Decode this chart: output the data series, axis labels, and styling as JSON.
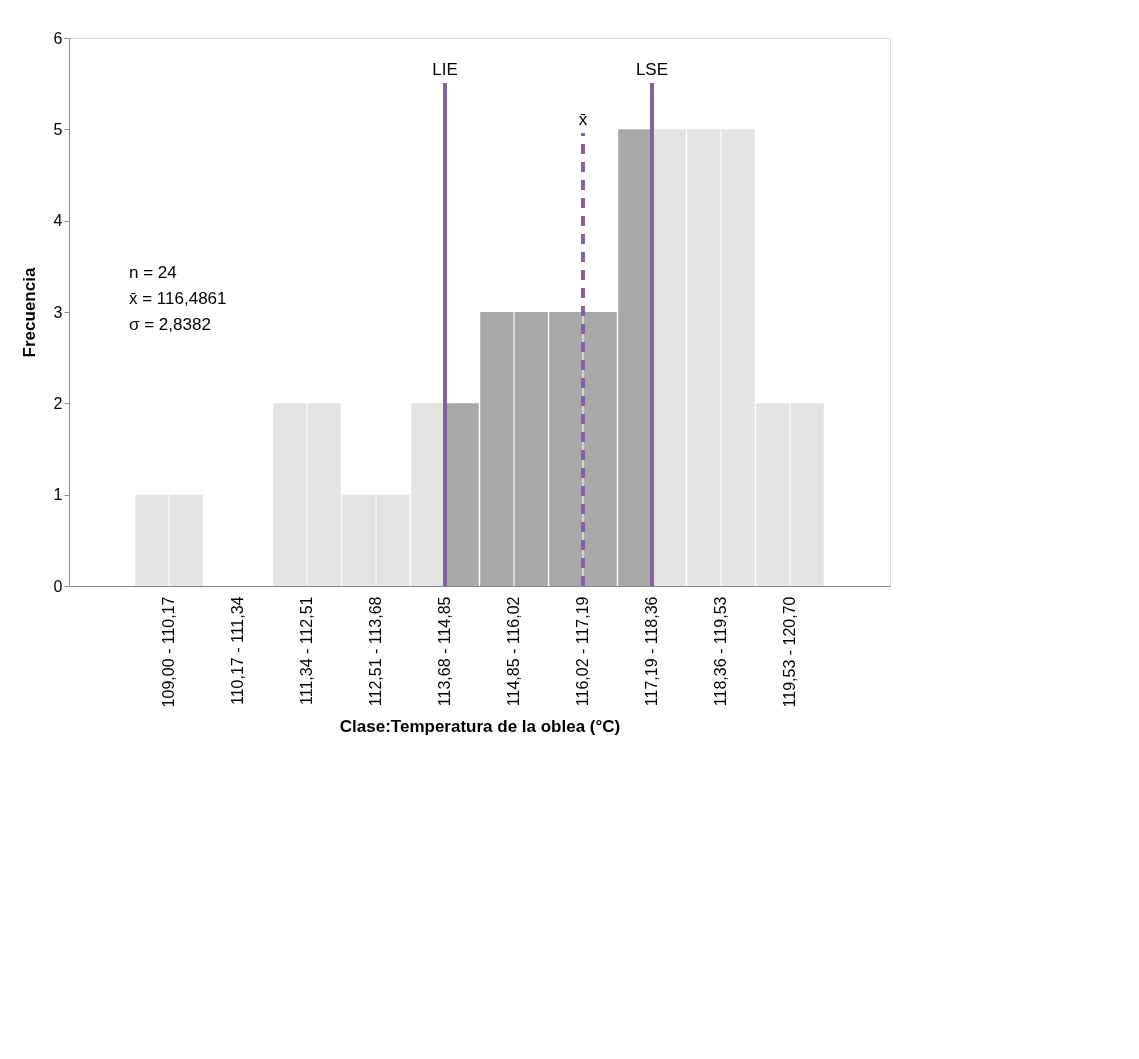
{
  "chart_data": {
    "type": "bar",
    "xlabel": "Clase:Temperatura de la oblea (°C)",
    "ylabel": "Frecuencia",
    "categories": [
      "109,00 - 110,17",
      "110,17 - 111,34",
      "111,34 - 112,51",
      "112,51 - 113,68",
      "113,68 - 114,85",
      "114,85 - 116,02",
      "116,02 - 117,19",
      "117,19 - 118,36",
      "118,36 - 119,53",
      "119,53 - 120,70"
    ],
    "series": [
      {
        "values": [
          1,
          0,
          2,
          1,
          2,
          3,
          3,
          5,
          5,
          2
        ],
        "colors": [
          "#e3e3e3",
          "#e3e3e3",
          "#e3e3e3",
          "#e3e3e3",
          "#e3e3e3",
          "#a9a9a9",
          "#a9a9a9",
          "#a9a9a9",
          "#e3e3e3",
          "#e3e3e3"
        ]
      },
      {
        "values": [
          1,
          0,
          2,
          1,
          2,
          3,
          3,
          5,
          5,
          2
        ],
        "colors": [
          "#e3e3e3",
          "#e3e3e3",
          "#e3e3e3",
          "#e3e3e3",
          "#a9a9a9",
          "#a9a9a9",
          "#a9a9a9",
          "#e3e3e3",
          "#e3e3e3",
          "#e3e3e3"
        ]
      }
    ],
    "ylim": [
      0,
      6
    ],
    "yticks": [
      0,
      1,
      2,
      3,
      4,
      5,
      6
    ],
    "grid": false,
    "ref_lines": [
      {
        "axis": "x",
        "value": "113,68 - 114,85",
        "label": "LIE",
        "color": "#8064a2",
        "line_style": "solid"
      },
      {
        "axis": "x",
        "value": "117,19 - 118,36",
        "label": "LSE",
        "color": "#8064a2",
        "line_style": "solid"
      },
      {
        "axis": "x",
        "value": "116,02 - 117,19",
        "label": "x̄",
        "color": "#8064a2",
        "line_style": "dashed"
      }
    ],
    "annotations": [
      "n = 24",
      "x̄ = 116,4861",
      "σ = 2,8382"
    ]
  }
}
